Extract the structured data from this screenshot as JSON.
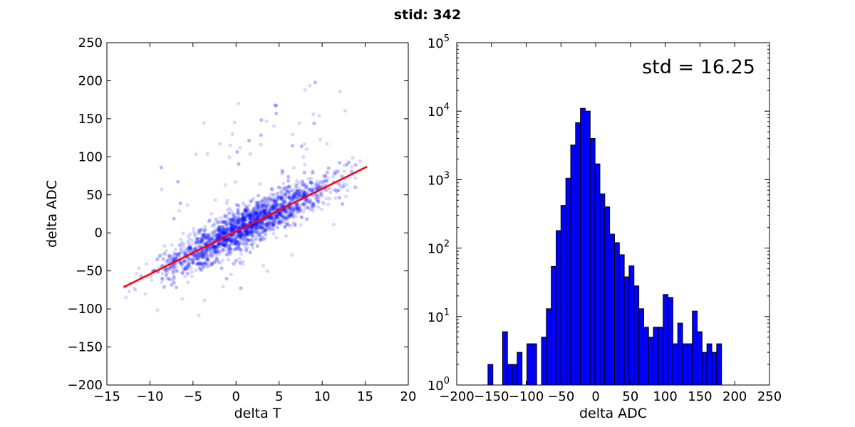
{
  "figure_title": "stid: 342",
  "chart_data": [
    {
      "type": "scatter",
      "xlabel": "delta T",
      "ylabel": "delta ADC",
      "xlim": [
        -15,
        20
      ],
      "ylim": [
        -200,
        250
      ],
      "xticks": [
        -15,
        -10,
        -5,
        0,
        5,
        10,
        15,
        20
      ],
      "yticks": [
        -200,
        -150,
        -100,
        -50,
        0,
        50,
        100,
        150,
        200,
        250
      ],
      "xtick_labels": [
        "−15",
        "−10",
        "−5",
        "0",
        "5",
        "10",
        "15",
        "20"
      ],
      "ytick_labels": [
        "−200",
        "−150",
        "−100",
        "−50",
        "0",
        "50",
        "100",
        "150",
        "200",
        "250"
      ],
      "grid": false,
      "point_color": "#0000ff",
      "point_alpha": 0.15,
      "cloud_summary": {
        "x_range": [
          -13,
          15
        ],
        "slope": 5.6,
        "intercept": 2,
        "spread_std": 13
      },
      "fit_line": {
        "color": "#ff0000",
        "x": [
          -13,
          15.2
        ],
        "y": [
          -71,
          87
        ]
      }
    },
    {
      "type": "bar",
      "xlabel": "delta ADC",
      "ylabel": "",
      "xlim": [
        -200,
        250
      ],
      "ylim": [
        1,
        100000
      ],
      "yscale": "log",
      "xticks": [
        -200,
        -150,
        -100,
        -50,
        0,
        50,
        100,
        150,
        200,
        250
      ],
      "xtick_labels": [
        "−200",
        "−150",
        "−100",
        "−50",
        "0",
        "50",
        "100",
        "150",
        "200",
        "250"
      ],
      "yticks": [
        1,
        10,
        100,
        1000,
        10000,
        100000
      ],
      "ytick_labels": [
        {
          "base": "10",
          "exp": "0"
        },
        {
          "base": "10",
          "exp": "1"
        },
        {
          "base": "10",
          "exp": "2"
        },
        {
          "base": "10",
          "exp": "3"
        },
        {
          "base": "10",
          "exp": "4"
        },
        {
          "base": "10",
          "exp": "5"
        }
      ],
      "annotation": "std = 16.25",
      "bar_color": "#0000ff",
      "bin_width": 7,
      "bin_start": -169,
      "values": [
        1,
        1,
        2,
        0,
        1,
        6,
        2,
        2,
        3,
        0,
        4,
        4,
        0,
        5,
        13,
        54,
        180,
        420,
        1050,
        3200,
        6800,
        11000,
        10000,
        4000,
        1700,
        620,
        400,
        160,
        120,
        80,
        38,
        55,
        28,
        13,
        7,
        5,
        7,
        7,
        21,
        19,
        4,
        8,
        4,
        4,
        12,
        6,
        3,
        4,
        3,
        4
      ]
    }
  ]
}
